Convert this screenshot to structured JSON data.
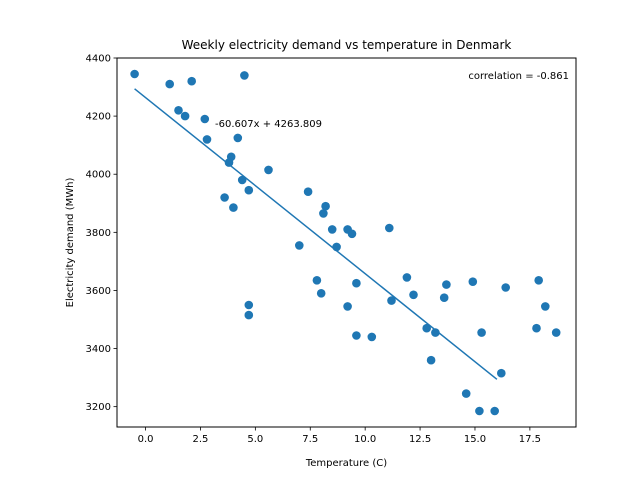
{
  "chart_data": {
    "type": "scatter",
    "title": "Weekly electricity demand vs temperature in Denmark",
    "xlabel": "Temperature (C)",
    "ylabel": "Electricity demand (MWh)",
    "xlim": [
      -1.3,
      19.6
    ],
    "ylim": [
      3130,
      4400
    ],
    "x_ticks": [
      0.0,
      2.5,
      5.0,
      7.5,
      10.0,
      12.5,
      15.0,
      17.5
    ],
    "x_tick_labels": [
      "0.0",
      "2.5",
      "5.0",
      "7.5",
      "10.0",
      "12.5",
      "15.0",
      "17.5"
    ],
    "y_ticks": [
      3200,
      3400,
      3600,
      3800,
      4000,
      4200,
      4400
    ],
    "y_tick_labels": [
      "3200",
      "3400",
      "3600",
      "3800",
      "4000",
      "4200",
      "4400"
    ],
    "grid": false,
    "point_color": "#1f77b4",
    "line_color": "#1f77b4",
    "points": [
      {
        "x": -0.5,
        "y": 4345
      },
      {
        "x": 1.1,
        "y": 4310
      },
      {
        "x": 2.1,
        "y": 4320
      },
      {
        "x": 4.5,
        "y": 4340
      },
      {
        "x": 1.5,
        "y": 4220
      },
      {
        "x": 1.8,
        "y": 4200
      },
      {
        "x": 2.7,
        "y": 4190
      },
      {
        "x": 2.8,
        "y": 4120
      },
      {
        "x": 4.2,
        "y": 4125
      },
      {
        "x": 3.9,
        "y": 4060
      },
      {
        "x": 3.8,
        "y": 4040
      },
      {
        "x": 5.6,
        "y": 4015
      },
      {
        "x": 4.4,
        "y": 3980
      },
      {
        "x": 4.7,
        "y": 3945
      },
      {
        "x": 3.6,
        "y": 3920
      },
      {
        "x": 4.0,
        "y": 3885
      },
      {
        "x": 7.4,
        "y": 3940
      },
      {
        "x": 8.2,
        "y": 3890
      },
      {
        "x": 8.1,
        "y": 3865
      },
      {
        "x": 8.5,
        "y": 3810
      },
      {
        "x": 9.2,
        "y": 3810
      },
      {
        "x": 9.4,
        "y": 3795
      },
      {
        "x": 8.7,
        "y": 3750
      },
      {
        "x": 7.0,
        "y": 3755
      },
      {
        "x": 11.1,
        "y": 3815
      },
      {
        "x": 7.8,
        "y": 3635
      },
      {
        "x": 8.0,
        "y": 3590
      },
      {
        "x": 9.6,
        "y": 3625
      },
      {
        "x": 4.7,
        "y": 3550
      },
      {
        "x": 4.7,
        "y": 3515
      },
      {
        "x": 9.2,
        "y": 3545
      },
      {
        "x": 9.6,
        "y": 3445
      },
      {
        "x": 10.3,
        "y": 3440
      },
      {
        "x": 11.2,
        "y": 3565
      },
      {
        "x": 11.9,
        "y": 3645
      },
      {
        "x": 12.2,
        "y": 3585
      },
      {
        "x": 12.8,
        "y": 3470
      },
      {
        "x": 13.0,
        "y": 3360
      },
      {
        "x": 13.2,
        "y": 3455
      },
      {
        "x": 13.6,
        "y": 3575
      },
      {
        "x": 13.7,
        "y": 3620
      },
      {
        "x": 14.9,
        "y": 3630
      },
      {
        "x": 15.3,
        "y": 3455
      },
      {
        "x": 14.6,
        "y": 3245
      },
      {
        "x": 15.2,
        "y": 3185
      },
      {
        "x": 15.9,
        "y": 3185
      },
      {
        "x": 16.2,
        "y": 3315
      },
      {
        "x": 16.4,
        "y": 3610
      },
      {
        "x": 17.9,
        "y": 3635
      },
      {
        "x": 18.2,
        "y": 3545
      },
      {
        "x": 17.8,
        "y": 3470
      },
      {
        "x": 18.7,
        "y": 3455
      }
    ],
    "fit_line": {
      "slope": -60.607,
      "intercept": 4263.809,
      "x_start": -0.5,
      "x_end": 16.0,
      "equation_label": "-60.607x + 4263.809"
    },
    "annotations": {
      "correlation": "correlation = -0.861"
    }
  }
}
